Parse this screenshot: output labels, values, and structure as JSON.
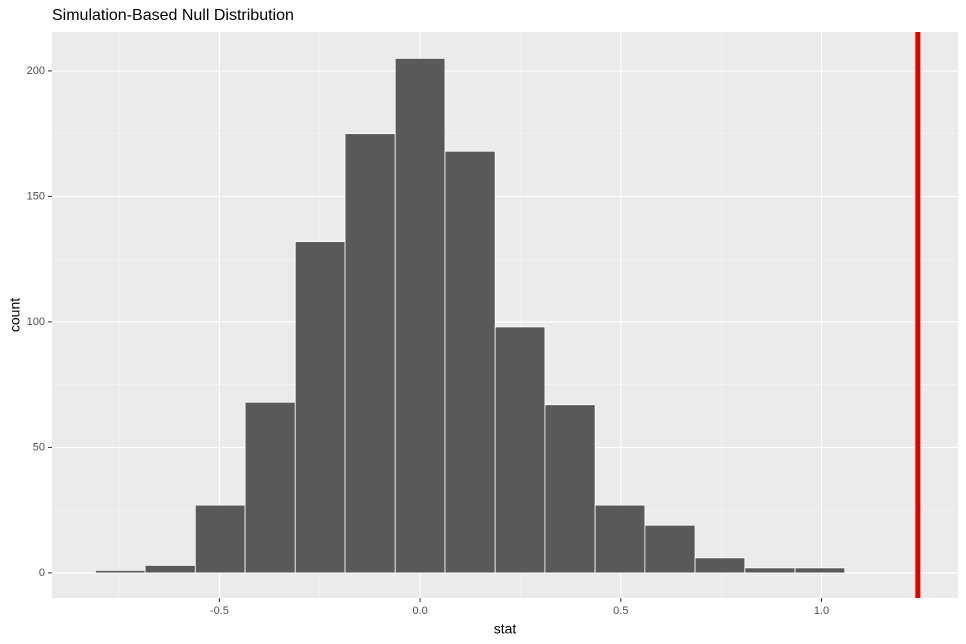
{
  "chart_data": {
    "type": "histogram",
    "title": "Simulation-Based Null Distribution",
    "x_label": "stat",
    "y_label": "count",
    "bins": [
      -0.809,
      -0.685,
      -0.56,
      -0.436,
      -0.311,
      -0.187,
      -0.062,
      0.062,
      0.187,
      0.311,
      0.436,
      0.56,
      0.685,
      0.809,
      0.934,
      1.058
    ],
    "values": [
      1,
      3,
      27,
      68,
      132,
      175,
      205,
      168,
      98,
      67,
      27,
      19,
      6,
      2,
      2
    ],
    "color": "#595959",
    "obs_stat": 1.24,
    "obs_color": "#e00000",
    "xlim": [
      -0.917,
      1.34
    ],
    "ylim": [
      -10,
      215.5
    ],
    "xticks": [
      -0.5,
      {
        "value": 0,
        "label": "0.0"
      },
      0.5,
      {
        "value": 1,
        "label": "1.0"
      }
    ],
    "yticks": [
      0,
      50,
      100,
      150,
      200
    ],
    "grid": true
  }
}
